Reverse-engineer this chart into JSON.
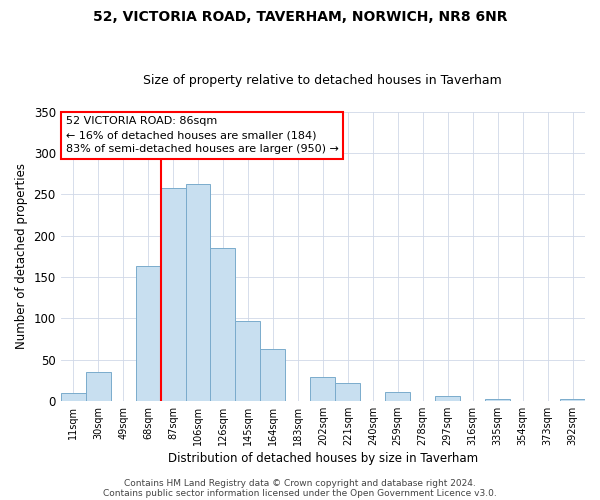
{
  "title": "52, VICTORIA ROAD, TAVERHAM, NORWICH, NR8 6NR",
  "subtitle": "Size of property relative to detached houses in Taverham",
  "xlabel": "Distribution of detached houses by size in Taverham",
  "ylabel": "Number of detached properties",
  "bar_labels": [
    "11sqm",
    "30sqm",
    "49sqm",
    "68sqm",
    "87sqm",
    "106sqm",
    "126sqm",
    "145sqm",
    "164sqm",
    "183sqm",
    "202sqm",
    "221sqm",
    "240sqm",
    "259sqm",
    "278sqm",
    "297sqm",
    "316sqm",
    "335sqm",
    "354sqm",
    "373sqm",
    "392sqm"
  ],
  "bar_heights": [
    9,
    35,
    0,
    163,
    258,
    262,
    185,
    97,
    63,
    0,
    29,
    21,
    0,
    11,
    0,
    6,
    0,
    2,
    0,
    0,
    2
  ],
  "bar_color": "#c8dff0",
  "bar_edge_color": "#7aabcc",
  "vline_x_index": 4,
  "vline_color": "red",
  "ylim": [
    0,
    350
  ],
  "yticks": [
    0,
    50,
    100,
    150,
    200,
    250,
    300,
    350
  ],
  "annotation_title": "52 VICTORIA ROAD: 86sqm",
  "annotation_line1": "← 16% of detached houses are smaller (184)",
  "annotation_line2": "83% of semi-detached houses are larger (950) →",
  "footer1": "Contains HM Land Registry data © Crown copyright and database right 2024.",
  "footer2": "Contains public sector information licensed under the Open Government Licence v3.0.",
  "background_color": "#ffffff"
}
